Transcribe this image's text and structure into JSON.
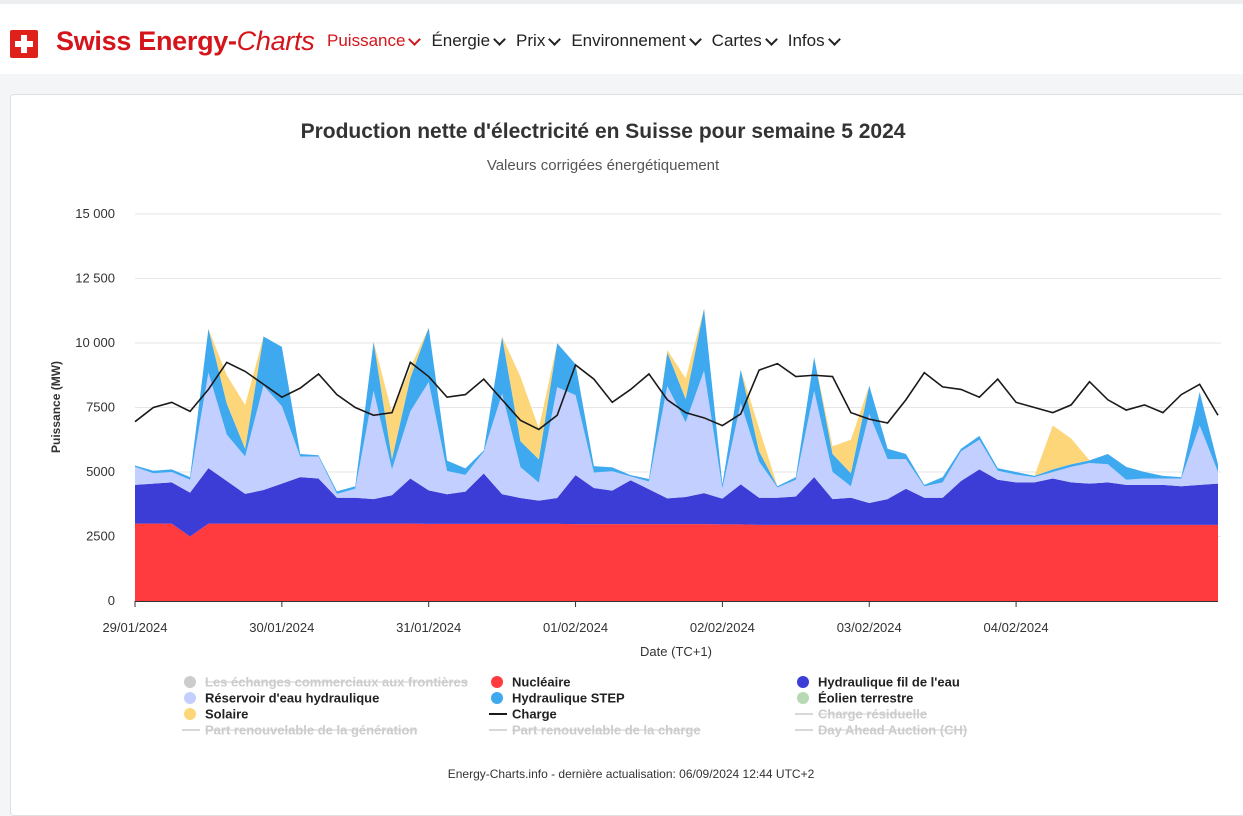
{
  "brand": {
    "name_part1": "Swiss Energy-",
    "name_part2": "Charts",
    "flag_icon": "swiss-cross"
  },
  "nav": [
    {
      "label": "Puissance",
      "active": true
    },
    {
      "label": "Énergie",
      "active": false
    },
    {
      "label": "Prix",
      "active": false
    },
    {
      "label": "Environnement",
      "active": false
    },
    {
      "label": "Cartes",
      "active": false
    },
    {
      "label": "Infos",
      "active": false
    }
  ],
  "footer": "Energy-Charts.info - dernière actualisation: 06/09/2024 12:44 UTC+2",
  "chart_data": {
    "type": "area",
    "title": "Production nette d'électricité en Suisse pour semaine 5 2024",
    "subtitle": "Valeurs corrigées énergétiquement",
    "xlabel": "Date (TC+1)",
    "ylabel": "Puissance (MW)",
    "ylim": [
      0,
      15000
    ],
    "yticks": [
      "0",
      "2500",
      "5000",
      "7500",
      "10 000",
      "12 500",
      "15 000"
    ],
    "xticks": [
      "29/01/2024",
      "30/01/2024",
      "31/01/2024",
      "01/02/2024",
      "02/02/2024",
      "03/02/2024",
      "04/02/2024"
    ],
    "x_start": "29/01/2024 00:00",
    "x_step_hours": 3,
    "grid": true,
    "stacked": true,
    "series": [
      {
        "name": "Nucléaire",
        "color": "#ff3b3f",
        "visible": true,
        "values": [
          3000,
          3000,
          3000,
          2500,
          3000,
          3000,
          3000,
          3000,
          3000,
          3000,
          3000,
          3000,
          3000,
          3000,
          3000,
          3000,
          2990,
          2990,
          2990,
          2990,
          2990,
          2990,
          2990,
          2990,
          2980,
          2980,
          2980,
          2980,
          2980,
          2980,
          2980,
          2980,
          2970,
          2970,
          2950,
          2950,
          2950,
          2950,
          2950,
          2950,
          2950,
          2950,
          2950,
          2950,
          2950,
          2950,
          2950,
          2950,
          2950,
          2950,
          2950,
          2950,
          2950,
          2950,
          2950,
          2950,
          2950,
          2950,
          2950,
          2950
        ]
      },
      {
        "name": "Hydraulique fil de l'eau",
        "color": "#3c3cd6",
        "visible": true,
        "values": [
          1500,
          1550,
          1600,
          1700,
          2150,
          1650,
          1150,
          1300,
          1550,
          1800,
          1750,
          1000,
          1000,
          950,
          1100,
          1750,
          1300,
          1150,
          1250,
          1950,
          1150,
          1000,
          900,
          1000,
          1900,
          1400,
          1300,
          1700,
          1350,
          1000,
          1050,
          1200,
          1000,
          1550,
          1050,
          1050,
          1100,
          1850,
          1000,
          1050,
          850,
          1000,
          1400,
          1050,
          1050,
          1700,
          2150,
          1750,
          1650,
          1650,
          1800,
          1650,
          1600,
          1650,
          1550,
          1550,
          1550,
          1500,
          1550,
          1600
        ]
      },
      {
        "name": "Réservoir d'eau hydraulique",
        "color": "#c3cfff",
        "visible": true,
        "values": [
          700,
          400,
          400,
          500,
          3700,
          1800,
          1450,
          4050,
          3000,
          800,
          850,
          150,
          350,
          4200,
          1000,
          2600,
          4200,
          900,
          650,
          850,
          3900,
          1200,
          700,
          4300,
          3100,
          600,
          750,
          150,
          300,
          4350,
          2900,
          4750,
          400,
          3150,
          1400,
          400,
          650,
          3350,
          1050,
          450,
          3450,
          1550,
          1150,
          450,
          600,
          1150,
          1150,
          350,
          300,
          200,
          250,
          600,
          800,
          700,
          200,
          250,
          250,
          300,
          2300,
          450
        ]
      },
      {
        "name": "Hydraulique STEP",
        "color": "#3fa9f0",
        "visible": true,
        "values": [
          50,
          100,
          100,
          100,
          1700,
          1200,
          300,
          1900,
          2300,
          100,
          50,
          100,
          100,
          1900,
          400,
          1300,
          2100,
          400,
          250,
          50,
          2200,
          1000,
          900,
          1700,
          1200,
          250,
          150,
          50,
          100,
          1300,
          900,
          2400,
          150,
          1300,
          400,
          50,
          100,
          1300,
          700,
          500,
          1100,
          400,
          200,
          50,
          200,
          100,
          150,
          100,
          100,
          50,
          100,
          100,
          100,
          400,
          500,
          250,
          100,
          50,
          1300,
          300
        ]
      },
      {
        "name": "Éolien terrestre",
        "color": "#b8d9b4",
        "visible": true,
        "values": [
          0,
          0,
          0,
          0,
          0,
          0,
          0,
          0,
          0,
          0,
          0,
          0,
          0,
          0,
          0,
          0,
          0,
          0,
          0,
          0,
          0,
          0,
          0,
          0,
          0,
          0,
          0,
          0,
          0,
          0,
          0,
          0,
          0,
          0,
          0,
          0,
          0,
          0,
          0,
          0,
          0,
          0,
          0,
          0,
          0,
          0,
          0,
          0,
          0,
          0,
          0,
          0,
          0,
          0,
          0,
          0,
          0,
          0,
          0,
          0
        ]
      },
      {
        "name": "Solaire",
        "color": "#fcd679",
        "visible": true,
        "values": [
          0,
          0,
          0,
          0,
          0,
          1100,
          1700,
          0,
          0,
          0,
          0,
          0,
          0,
          0,
          1800,
          400,
          0,
          0,
          0,
          0,
          0,
          2500,
          1200,
          0,
          0,
          0,
          0,
          0,
          0,
          100,
          800,
          0,
          0,
          0,
          900,
          0,
          0,
          0,
          300,
          1300,
          0,
          0,
          0,
          0,
          0,
          0,
          0,
          0,
          0,
          0,
          1700,
          1000,
          0,
          0,
          0,
          0,
          0,
          0,
          0,
          0
        ]
      },
      {
        "name": "Les échanges commerciaux aux frontières",
        "color": "#c8c8c8",
        "visible": false,
        "values": []
      },
      {
        "name": "Charge",
        "color": "#1a1a1a",
        "visible": true,
        "kind": "line",
        "values": [
          6950,
          7500,
          7700,
          7350,
          8200,
          9250,
          8900,
          8400,
          7900,
          8250,
          8800,
          8000,
          7500,
          7200,
          7300,
          9250,
          8700,
          7900,
          8000,
          8600,
          7800,
          7000,
          6650,
          7200,
          9150,
          8600,
          7700,
          8200,
          8800,
          7800,
          7300,
          7100,
          6800,
          7250,
          8950,
          9200,
          8700,
          8750,
          8700,
          7300,
          7050,
          6900,
          7800,
          8850,
          8300,
          8200,
          7900,
          8600,
          7700,
          7500,
          7300,
          7600,
          8500,
          7800,
          7400,
          7600,
          7300,
          8000,
          8400,
          7200
        ]
      },
      {
        "name": "Charge résiduelle",
        "color": "#c8c8c8",
        "visible": false,
        "kind": "line",
        "values": []
      },
      {
        "name": "Part renouvelable de la génération",
        "color": "#c8c8c8",
        "visible": false,
        "kind": "line",
        "values": []
      },
      {
        "name": "Part renouvelable de la charge",
        "color": "#c8c8c8",
        "visible": false,
        "kind": "line",
        "values": []
      },
      {
        "name": "Day Ahead Auction (CH)",
        "color": "#c8c8c8",
        "visible": false,
        "kind": "line",
        "values": []
      }
    ]
  }
}
